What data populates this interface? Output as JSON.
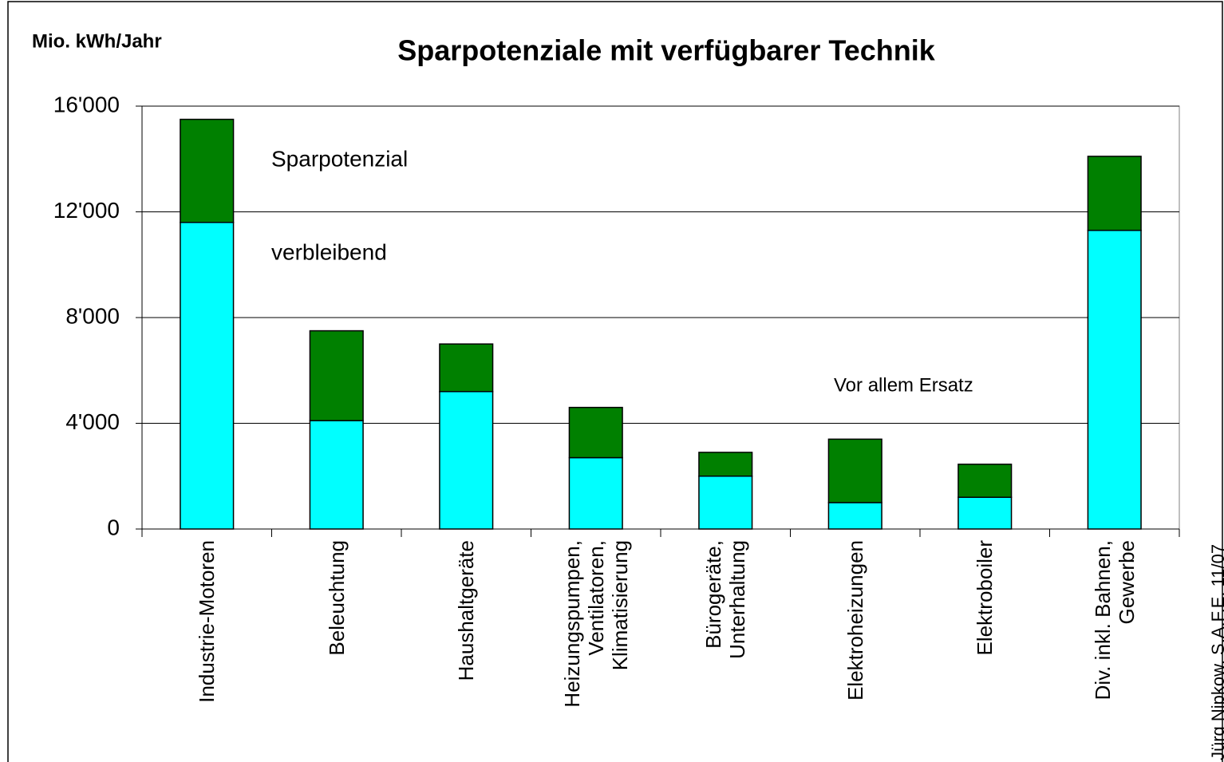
{
  "chart_data": {
    "type": "stacked_bar",
    "title": "Sparpotenziale mit verfügbarer Technik",
    "y_label": "Mio. kWh/Jahr",
    "source": "Jürg Nipkow, S.A.F.E. 11/07",
    "annotations": [
      "Vor allem Ersatz"
    ],
    "categories": [
      "Industrie-Motoren",
      "Beleuchtung",
      "Haushaltgeräte",
      "Heizungspumpen,\nVentilatoren,\nKlimatisierung",
      "Bürogeräte,\nUnterhaltung",
      "Elektroheizungen",
      "Elektroboiler",
      "Div. inkl. Bahnen,\nGewerbe"
    ],
    "series": [
      {
        "name": "verbleibend",
        "color": "#00ffff",
        "values": [
          11600,
          4100,
          5200,
          2700,
          2000,
          1000,
          1200,
          11300
        ]
      },
      {
        "name": "Sparpotenzial",
        "color": "#008000",
        "values": [
          3900,
          3400,
          1800,
          1900,
          900,
          2400,
          1250,
          2800
        ]
      }
    ],
    "ylim": [
      0,
      16000
    ],
    "yticks": [
      0,
      {
        "value": 4000,
        "label": "4'000"
      },
      {
        "value": 8000,
        "label": "8'000"
      },
      {
        "value": 12000,
        "label": "12'000"
      },
      {
        "value": 16000,
        "label": "16'000"
      }
    ],
    "grid": true
  }
}
